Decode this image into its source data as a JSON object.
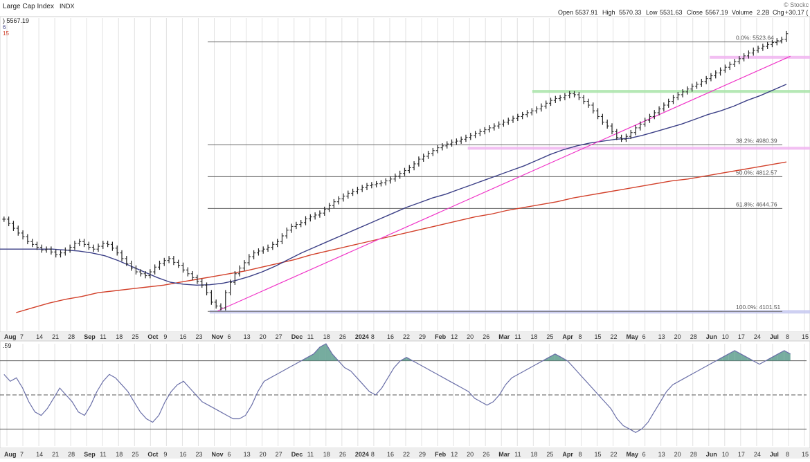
{
  "header": {
    "title": "Large Cap Index",
    "exchange": "INDX",
    "watermark": "© Stockc",
    "last_price": ") 5567.19",
    "legend_frag_1": "6",
    "legend_frag_2": "15",
    "ohlc": {
      "open_label": "Open",
      "open": "5537.91",
      "high_label": "High",
      "high": "5570.33",
      "low_label": "Low",
      "low": "5531.63",
      "close_label": "Close",
      "close": "5567.19",
      "volume_label": "Volume",
      "volume": "2.2B",
      "chg_label": "Chg",
      "chg": "+30.17 ("
    }
  },
  "indicator": {
    "label": ".59"
  },
  "colors": {
    "price": "#222222",
    "ma50": "#3b3f86",
    "ma200": "#d2402a",
    "trendline": "#f036c8",
    "pink_zone": "#f0b4f0",
    "green_zone": "#a8e4a8",
    "blue_zone": "#c6c8f0",
    "fib_line": "#666666",
    "rsi_line": "#6a6fa8",
    "rsi_fill": "#5e9e8e",
    "grid": "#e2e2e2",
    "axis_bg": "#eeeeee"
  },
  "chart_data": [
    {
      "type": "line",
      "panel": "price",
      "title": "Large Cap Index",
      "x_labels": [
        "Aug",
        "7",
        "14",
        "21",
        "28",
        "Sep",
        "11",
        "18",
        "25",
        "Oct",
        "9",
        "16",
        "23",
        "Nov",
        "6",
        "13",
        "20",
        "27",
        "Dec",
        "11",
        "18",
        "26",
        "2024",
        "8",
        "16",
        "22",
        "29",
        "Feb",
        "12",
        "20",
        "26",
        "Mar",
        "11",
        "18",
        "25",
        "Apr",
        "8",
        "15",
        "22",
        "May",
        "6",
        "13",
        "20",
        "28",
        "Jun",
        "10",
        "17",
        "24",
        "Jul",
        "8",
        "15"
      ],
      "x_label_bold": [
        "Aug",
        "Sep",
        "Oct",
        "Nov",
        "Dec",
        "2024",
        "Feb",
        "Mar",
        "Apr",
        "May",
        "Jun",
        "Jul"
      ],
      "ylim": [
        4000,
        5650
      ],
      "grid": true,
      "series": [
        {
          "role": "price",
          "values": [
            4588,
            4565,
            4540,
            4515,
            4495,
            4470,
            4455,
            4440,
            4425,
            4430,
            4415,
            4400,
            4410,
            4425,
            4440,
            4460,
            4470,
            4455,
            4440,
            4430,
            4445,
            4460,
            4455,
            4435,
            4410,
            4380,
            4355,
            4330,
            4310,
            4300,
            4290,
            4310,
            4335,
            4355,
            4370,
            4380,
            4360,
            4345,
            4320,
            4300,
            4280,
            4260,
            4240,
            4200,
            4150,
            4130,
            4120,
            4200,
            4255,
            4300,
            4330,
            4358,
            4390,
            4410,
            4420,
            4430,
            4440,
            4455,
            4470,
            4500,
            4530,
            4550,
            4560,
            4570,
            4590,
            4600,
            4610,
            4620,
            4640,
            4660,
            4680,
            4695,
            4710,
            4725,
            4735,
            4745,
            4755,
            4765,
            4770,
            4775,
            4780,
            4790,
            4800,
            4815,
            4830,
            4845,
            4860,
            4880,
            4905,
            4920,
            4935,
            4950,
            4965,
            4975,
            4985,
            4995,
            5000,
            5010,
            5020,
            5030,
            5040,
            5050,
            5060,
            5070,
            5080,
            5090,
            5100,
            5110,
            5120,
            5130,
            5140,
            5150,
            5160,
            5170,
            5185,
            5200,
            5215,
            5225,
            5230,
            5240,
            5250,
            5245,
            5230,
            5210,
            5190,
            5160,
            5130,
            5100,
            5080,
            5050,
            5020,
            5010,
            5025,
            5045,
            5070,
            5090,
            5110,
            5130,
            5150,
            5170,
            5190,
            5210,
            5230,
            5245,
            5260,
            5275,
            5290,
            5300,
            5315,
            5330,
            5345,
            5360,
            5375,
            5390,
            5405,
            5420,
            5435,
            5450,
            5465,
            5480,
            5490,
            5500,
            5510,
            5520,
            5530,
            5537,
            5567
          ]
        },
        {
          "role": "50-day moving average",
          "values": [
            4430,
            4430,
            4430,
            4430,
            4430,
            4425,
            4420,
            4410,
            4395,
            4370,
            4340,
            4310,
            4280,
            4255,
            4245,
            4240,
            4242,
            4250,
            4265,
            4285,
            4310,
            4340,
            4375,
            4410,
            4440,
            4470,
            4500,
            4530,
            4560,
            4590,
            4620,
            4650,
            4675,
            4700,
            4720,
            4745,
            4770,
            4795,
            4820,
            4845,
            4870,
            4900,
            4930,
            4955,
            4975,
            4990,
            5000,
            5010,
            5015,
            5030,
            5050,
            5070,
            5090,
            5115,
            5140,
            5160,
            5185,
            5215,
            5240,
            5270,
            5300
          ]
        },
        {
          "role": "200-day moving average",
          "values": [
            4095,
            4120,
            4145,
            4165,
            4180,
            4200,
            4210,
            4220,
            4230,
            4240,
            4255,
            4270,
            4285,
            4300,
            4315,
            4335,
            4355,
            4375,
            4400,
            4420,
            4440,
            4460,
            4480,
            4500,
            4520,
            4540,
            4560,
            4580,
            4600,
            4615,
            4635,
            4650,
            4665,
            4680,
            4700,
            4715,
            4730,
            4745,
            4760,
            4775,
            4790,
            4800,
            4815,
            4830,
            4845,
            4860,
            4875,
            4890
          ]
        }
      ],
      "annotations": [
        {
          "label": "0.0%: 5523.64",
          "y": 5523.64,
          "kind": "fibonacci"
        },
        {
          "label": "38.2%: 4980.39",
          "y": 4980.39,
          "kind": "fibonacci"
        },
        {
          "label": "50.0%: 4812.57",
          "y": 4812.57,
          "kind": "fibonacci"
        },
        {
          "label": "61.8%: 4644.76",
          "y": 4644.76,
          "kind": "fibonacci"
        },
        {
          "label": "100.0%: 4101.51",
          "y": 4101.51,
          "kind": "fibonacci"
        }
      ],
      "zones": [
        {
          "kind": "pink",
          "y_from": 5435,
          "y_to": 5450
        },
        {
          "kind": "green",
          "y_from": 5255,
          "y_to": 5270
        },
        {
          "kind": "pink",
          "y_from": 4955,
          "y_to": 4970
        },
        {
          "kind": "blue",
          "y_from": 4090,
          "y_to": 4108
        }
      ],
      "trendline": {
        "from": [
          4104,
          0.27
        ],
        "to": [
          5448,
          0.98
        ]
      }
    },
    {
      "type": "area",
      "panel": "indicator",
      "ylim": [
        20,
        80
      ],
      "reference_lines": [
        70,
        50,
        30
      ],
      "values": [
        62,
        58,
        60,
        54,
        46,
        40,
        38,
        42,
        48,
        54,
        50,
        46,
        40,
        38,
        44,
        52,
        58,
        62,
        60,
        56,
        52,
        46,
        40,
        36,
        34,
        38,
        46,
        52,
        56,
        58,
        54,
        50,
        46,
        44,
        42,
        40,
        38,
        36,
        36,
        38,
        44,
        52,
        58,
        60,
        62,
        64,
        66,
        68,
        70,
        72,
        74,
        78,
        80,
        74,
        70,
        66,
        64,
        60,
        56,
        52,
        50,
        54,
        60,
        66,
        70,
        72,
        70,
        68,
        66,
        64,
        62,
        60,
        58,
        56,
        54,
        52,
        48,
        46,
        44,
        46,
        50,
        56,
        60,
        62,
        64,
        66,
        68,
        70,
        72,
        74,
        72,
        70,
        66,
        62,
        58,
        54,
        50,
        46,
        42,
        36,
        32,
        30,
        28,
        30,
        34,
        40,
        46,
        52,
        56,
        58,
        60,
        62,
        64,
        66,
        68,
        70,
        72,
        74,
        76,
        74,
        72,
        70,
        68,
        70,
        72,
        74,
        76,
        74
      ]
    }
  ]
}
